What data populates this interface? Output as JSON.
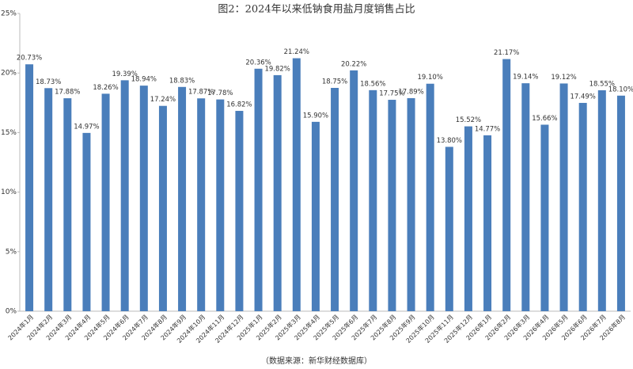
{
  "chart_data": {
    "type": "bar",
    "title": "图2：2024年以来低钠食用盐月度销售占比",
    "note": "（数据来源：新华财经数据库）",
    "categories": [
      "2024年1月",
      "2024年2月",
      "2024年3月",
      "2024年4月",
      "2024年5月",
      "2024年6月",
      "2024年7月",
      "2024年8月",
      "2024年9月",
      "2024年10月",
      "2024年11月",
      "2024年12月",
      "2025年1月",
      "2025年2月",
      "2025年3月",
      "2025年4月",
      "2025年5月",
      "2025年6月",
      "2025年7月",
      "2025年8月",
      "2025年9月",
      "2025年10月",
      "2025年11月",
      "2025年12月",
      "2026年1月",
      "2026年2月",
      "2026年3月",
      "2026年4月",
      "2026年5月",
      "2026年6月",
      "2026年7月",
      "2026年8月"
    ],
    "values": [
      20.73,
      18.73,
      17.88,
      14.97,
      18.26,
      19.39,
      18.94,
      17.24,
      18.83,
      17.87,
      17.78,
      16.82,
      20.36,
      19.82,
      21.24,
      15.9,
      18.75,
      20.22,
      18.56,
      17.75,
      17.89,
      19.1,
      13.8,
      15.52,
      14.77,
      21.17,
      19.14,
      15.66,
      19.12,
      17.49,
      18.55,
      18.1
    ],
    "value_labels": [
      "20.73%",
      "18.73%",
      "17.88%",
      "14.97%",
      "18.26%",
      "19.39%",
      "18.94%",
      "17.24%",
      "18.83%",
      "17.87%",
      "17.78%",
      "16.82%",
      "20.36%",
      "19.82%",
      "21.24%",
      "15.90%",
      "18.75%",
      "20.22%",
      "18.56%",
      "17.75%",
      "17.89%",
      "19.10%",
      "13.80%",
      "15.52%",
      "14.77%",
      "21.17%",
      "19.14%",
      "15.66%",
      "19.12%",
      "17.49%",
      "18.55%",
      "18.10%"
    ],
    "color": "#4a7ebb",
    "ylim": [
      0,
      25
    ],
    "yticks": [
      {
        "value": 0,
        "label": "0%"
      },
      {
        "value": 5,
        "label": "5%"
      },
      {
        "value": 10,
        "label": "10%"
      },
      {
        "value": 15,
        "label": "15%"
      },
      {
        "value": 20,
        "label": "20%"
      },
      {
        "value": 25,
        "label": "25%"
      }
    ],
    "grid": false
  }
}
